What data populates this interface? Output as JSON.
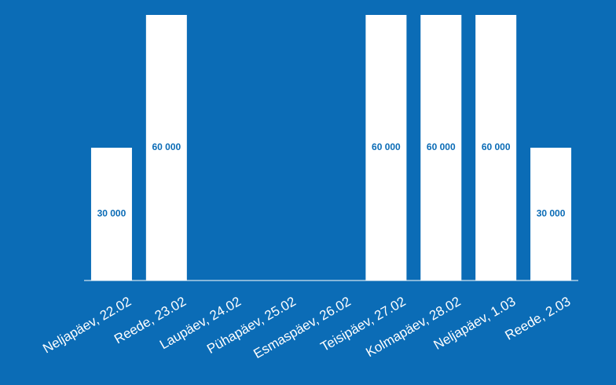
{
  "chart_data": {
    "type": "bar",
    "categories": [
      "Neljapäev, 22.02",
      "Reede, 23.02",
      "Laupäev, 24.02",
      "Pühapäev, 25.02",
      "Esmaspäev, 26.02",
      "Teisipäev, 27.02",
      "Kolmapäev, 28.02",
      "Neljapäev, 1.03",
      "Reede, 2.03"
    ],
    "values": [
      30000,
      60000,
      0,
      0,
      0,
      60000,
      60000,
      60000,
      30000
    ],
    "value_labels": [
      "30 000",
      "60 000",
      null,
      null,
      null,
      "60 000",
      "60 000",
      "60 000",
      "30 000"
    ],
    "color": "#ffffff",
    "background": "#0b6cb6",
    "ylim": [
      0,
      60000
    ]
  }
}
